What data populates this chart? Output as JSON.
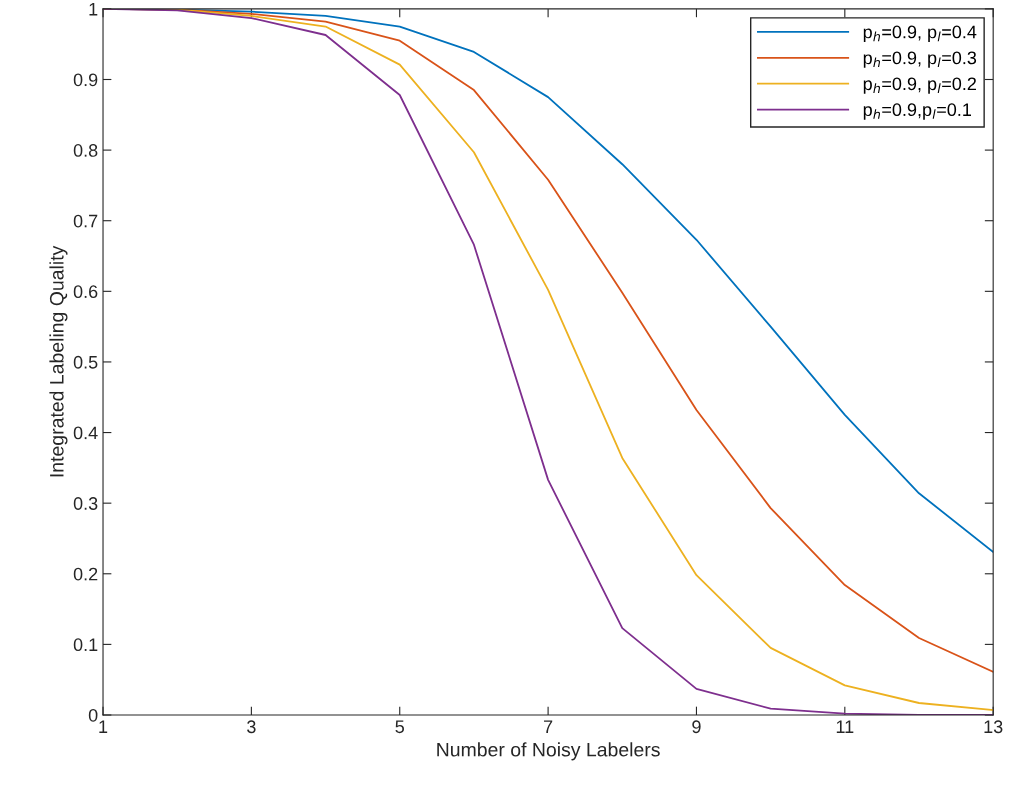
{
  "chart_data": {
    "type": "line",
    "xlabel": "Number of Noisy Labelers",
    "ylabel": "Integrated Labeling Quality",
    "x": [
      1,
      2,
      3,
      4,
      5,
      6,
      7,
      8,
      9,
      10,
      11,
      12,
      13
    ],
    "series": [
      {
        "name": "p$_{h}$=0.9, p$_{l}$=0.4",
        "color": "#0072bd",
        "values": [
          1.0,
          0.999,
          0.996,
          0.99,
          0.975,
          0.939,
          0.875,
          0.78,
          0.673,
          0.55,
          0.425,
          0.314,
          0.231
        ]
      },
      {
        "name": "p$_{h}$=0.9, p$_{l}$=0.3",
        "color": "#d95319",
        "values": [
          1.0,
          0.999,
          0.993,
          0.982,
          0.955,
          0.885,
          0.758,
          0.598,
          0.432,
          0.293,
          0.184,
          0.109,
          0.061
        ]
      },
      {
        "name": "p$_{h}$=0.9, p$_{l}$=0.2",
        "color": "#edb120",
        "values": [
          1.0,
          0.999,
          0.99,
          0.975,
          0.921,
          0.797,
          0.602,
          0.364,
          0.198,
          0.095,
          0.042,
          0.017,
          0.007
        ]
      },
      {
        "name": "p$_{h}$=0.9,p$_{l}$=0.1",
        "color": "#7e2f8e",
        "values": [
          1.0,
          0.998,
          0.987,
          0.963,
          0.878,
          0.666,
          0.333,
          0.123,
          0.037,
          0.009,
          0.002,
          0.0,
          0.0
        ]
      }
    ],
    "xlim": [
      1,
      13
    ],
    "xticks": [
      1,
      3,
      5,
      7,
      9,
      11,
      13
    ],
    "ylim": [
      0,
      1
    ],
    "yticks": [
      0,
      0.1,
      0.2,
      0.3,
      0.4,
      0.5,
      0.6,
      0.7,
      0.8,
      0.9,
      1
    ],
    "grid": false,
    "legend": "top right",
    "marker": "none",
    "line_style": "solid"
  }
}
